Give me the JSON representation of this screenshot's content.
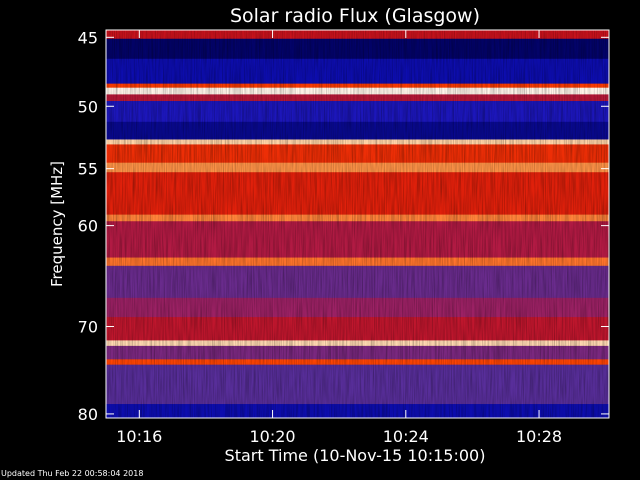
{
  "chart_data": {
    "type": "heatmap",
    "title": "Solar radio Flux (Glasgow)",
    "xlabel": "Start Time (10-Nov-15 10:15:00)",
    "ylabel": "Frequency [MHz]",
    "x_ticks": [
      "10:16",
      "10:20",
      "10:24",
      "10:28"
    ],
    "x_tick_minutes": [
      1,
      5,
      9,
      13
    ],
    "xlim_minutes": [
      0,
      15.1
    ],
    "y_ticks": [
      45,
      50,
      55,
      60,
      70,
      80
    ],
    "ylim": [
      44.5,
      80.5
    ],
    "y_scale": "log-like",
    "colormap": [
      "#000050",
      "#1010c0",
      "#5030a0",
      "#a02060",
      "#d01010",
      "#ff4000",
      "#ffb060",
      "#ffffff"
    ],
    "bands": [
      {
        "f0": 44.5,
        "f1": 45.1,
        "level": 0.55
      },
      {
        "f0": 45.1,
        "f1": 46.5,
        "level": 0.03
      },
      {
        "f0": 46.5,
        "f1": 48.3,
        "level": 0.12
      },
      {
        "f0": 48.3,
        "f1": 48.6,
        "level": 0.7
      },
      {
        "f0": 48.6,
        "f1": 49.1,
        "level": 0.98
      },
      {
        "f0": 49.1,
        "f1": 49.6,
        "level": 0.5
      },
      {
        "f0": 49.6,
        "f1": 51.2,
        "level": 0.17
      },
      {
        "f0": 51.2,
        "f1": 52.6,
        "level": 0.08
      },
      {
        "f0": 52.6,
        "f1": 53.0,
        "level": 0.92
      },
      {
        "f0": 53.0,
        "f1": 54.5,
        "level": 0.66
      },
      {
        "f0": 54.5,
        "f1": 55.3,
        "level": 0.82
      },
      {
        "f0": 55.3,
        "f1": 59.0,
        "level": 0.62
      },
      {
        "f0": 59.0,
        "f1": 59.6,
        "level": 0.8
      },
      {
        "f0": 59.6,
        "f1": 63.0,
        "level": 0.48
      },
      {
        "f0": 63.0,
        "f1": 63.8,
        "level": 0.78
      },
      {
        "f0": 63.8,
        "f1": 67.0,
        "level": 0.33
      },
      {
        "f0": 67.0,
        "f1": 69.0,
        "level": 0.42
      },
      {
        "f0": 69.0,
        "f1": 71.5,
        "level": 0.52
      },
      {
        "f0": 71.5,
        "f1": 72.1,
        "level": 0.93
      },
      {
        "f0": 72.1,
        "f1": 73.6,
        "level": 0.36
      },
      {
        "f0": 73.6,
        "f1": 74.2,
        "level": 0.72
      },
      {
        "f0": 74.2,
        "f1": 78.8,
        "level": 0.3
      },
      {
        "f0": 78.8,
        "f1": 80.5,
        "level": 0.12
      }
    ]
  },
  "footer": {
    "updated": "Updated Thu Feb 22 00:58:04 2018"
  }
}
